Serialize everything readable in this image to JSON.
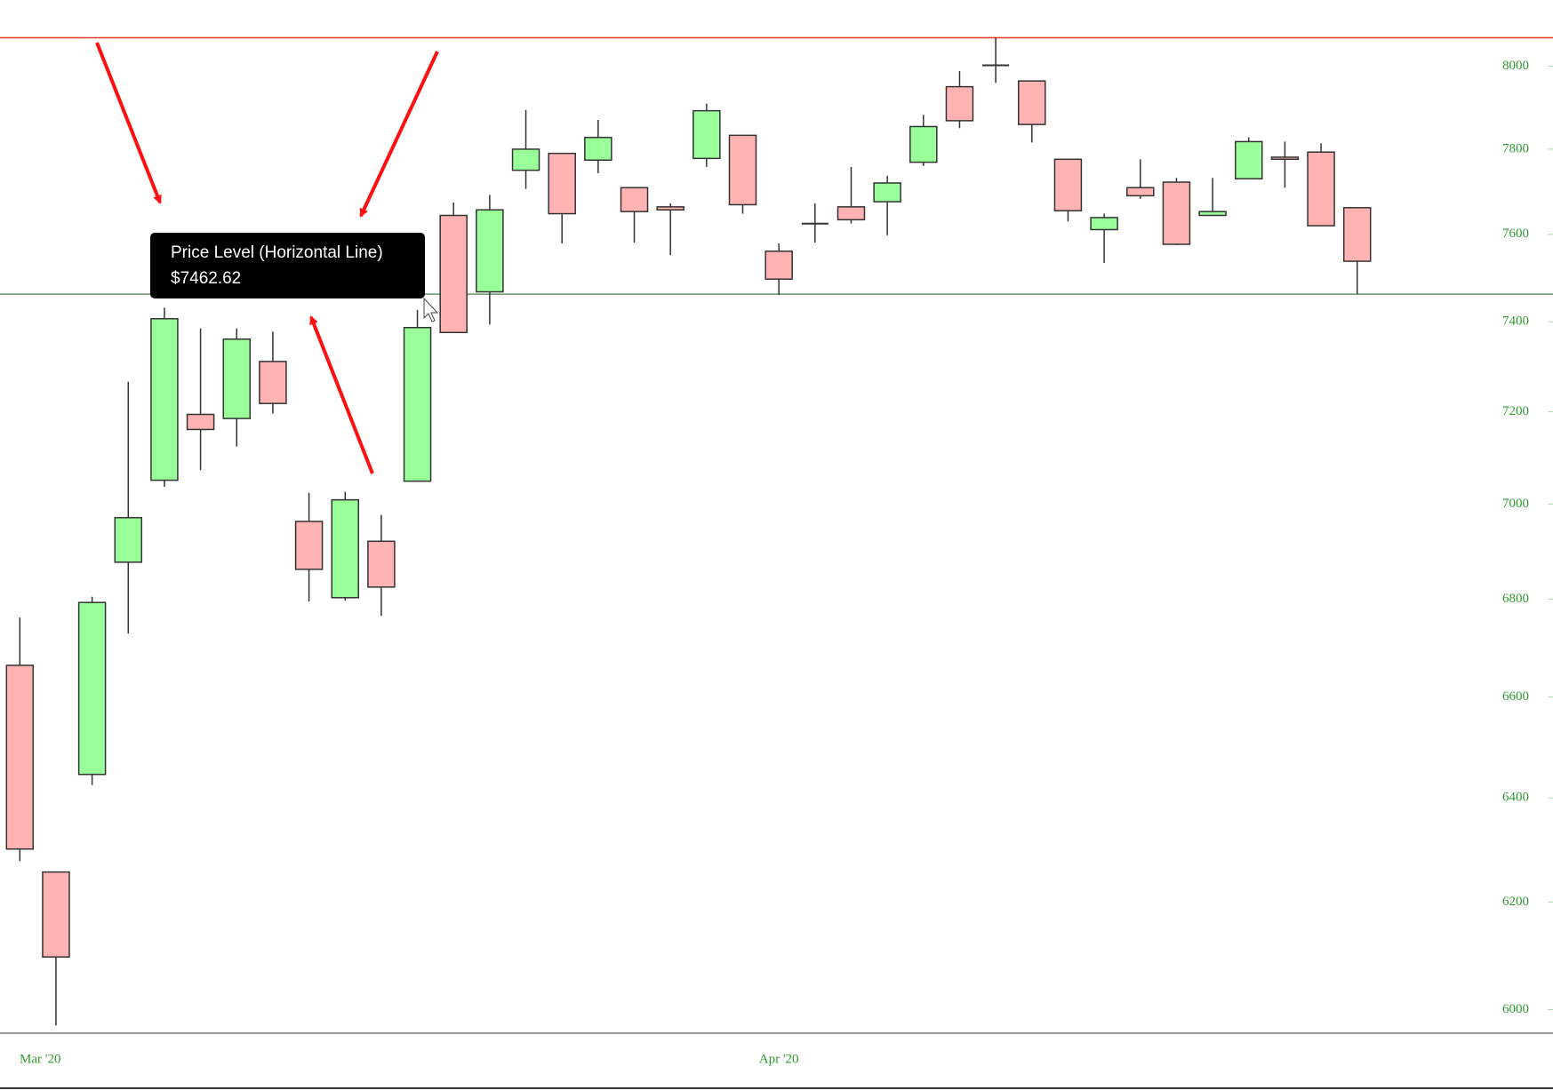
{
  "chart_data": {
    "type": "candlestick",
    "categories": [
      "Mar '20",
      null,
      null,
      null,
      null,
      null,
      null,
      null,
      null,
      null,
      null,
      null,
      null,
      null,
      null,
      null,
      null,
      null,
      null,
      null,
      null,
      "Apr '20",
      null,
      null,
      null,
      null,
      null,
      null,
      null,
      null,
      null,
      null,
      null,
      null,
      null,
      null,
      null,
      null
    ],
    "open": [
      6664,
      6257,
      6446,
      6877,
      7051,
      7194,
      7185,
      7311,
      6963,
      6803,
      6921,
      7049,
      7644,
      7468,
      7750,
      7790,
      7774,
      7709,
      7664,
      7778,
      7833,
      7561,
      7625,
      7664,
      7676,
      7769,
      7950,
      8002,
      7964,
      7776,
      7611,
      7709,
      7722,
      7644,
      7730,
      7781,
      7793,
      7662
    ],
    "high": [
      6762,
      6257,
      6805,
      7266,
      7432,
      7385,
      7385,
      7378,
      7024,
      7026,
      6977,
      7427,
      7674,
      7692,
      7894,
      7790,
      7870,
      7709,
      7672,
      7909,
      7833,
      7579,
      7672,
      7758,
      7737,
      7882,
      7988,
      8070,
      7964,
      7776,
      7648,
      7776,
      7732,
      7732,
      7828,
      7818,
      7814,
      7662
    ],
    "low": [
      6278,
      5971,
      6425,
      6729,
      7037,
      7073,
      7124,
      7196,
      6795,
      6797,
      6765,
      7049,
      7376,
      7394,
      7706,
      7579,
      7743,
      7581,
      7552,
      7758,
      7648,
      7461,
      7581,
      7625,
      7598,
      7760,
      7850,
      7959,
      7816,
      7630,
      7534,
      7683,
      7575,
      7644,
      7730,
      7709,
      7620,
      7463
    ],
    "close": [
      6301,
      6097,
      6793,
      6971,
      7407,
      7161,
      7361,
      7218,
      6862,
      7009,
      6825,
      7387,
      7376,
      7657,
      7800,
      7648,
      7828,
      7653,
      7657,
      7892,
      7669,
      7497,
      7625,
      7634,
      7720,
      7854,
      7868,
      8002,
      7859,
      7655,
      7639,
      7690,
      7577,
      7653,
      7818,
      7776,
      7620,
      7538
    ],
    "up_color": "#99ff99",
    "down_color": "#ffb3b3",
    "ylim": [
      5957,
      8070
    ],
    "yticks": [
      6000,
      6200,
      6400,
      6600,
      6800,
      7000,
      7200,
      7400,
      7600,
      7800,
      8000
    ],
    "log_scale": true,
    "axis_color": "#2e9a2e",
    "price_level": {
      "name": "Price Level (Horizontal Line)",
      "value": 7462.62,
      "value_label": "$7462.62",
      "color": "#6e8f6e"
    }
  }
}
